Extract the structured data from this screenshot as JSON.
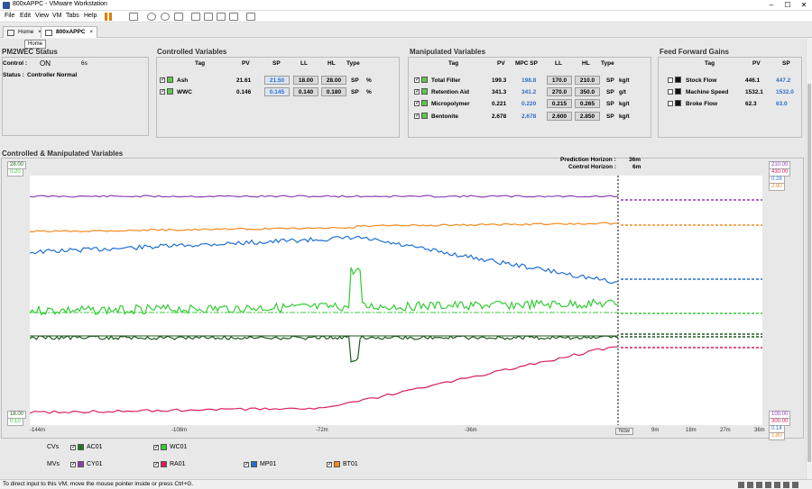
{
  "window": {
    "title": "800xAPPC - VMware Workstation"
  },
  "menu": [
    "File",
    "Edit",
    "View",
    "VM",
    "Tabs",
    "Help"
  ],
  "tabs": [
    {
      "label": "Home"
    },
    {
      "label": "800xAPPC"
    }
  ],
  "tooltip": "Home",
  "status_bar": "To direct input to this VM, move the mouse pointer inside or press Ctrl+G.",
  "pm2wec": {
    "title": "PM2WEC Status",
    "control_label": "Control :",
    "control_value": "ON",
    "control_time": "6s",
    "status_label": "Status :",
    "status_value": "Controller Normal"
  },
  "cv_panel": {
    "title": "Controlled Variables",
    "headers": [
      "Tag",
      "PV",
      "SP",
      "LL",
      "HL",
      "Type"
    ],
    "rows": [
      {
        "tag": "Ash",
        "pv": "21.61",
        "sp": "21.50",
        "ll": "18.00",
        "hl": "28.00",
        "type": "SP",
        "unit": "%"
      },
      {
        "tag": "WWC",
        "pv": "0.146",
        "sp": "0.145",
        "ll": "0.140",
        "hl": "0.180",
        "type": "SP",
        "unit": "%"
      }
    ]
  },
  "mv_panel": {
    "title": "Manipulated Variables",
    "headers": [
      "Tag",
      "PV",
      "MPC SP",
      "LL",
      "HL",
      "Type"
    ],
    "rows": [
      {
        "tag": "Total Filler",
        "pv": "199.3",
        "sp": "198.8",
        "ll": "170.0",
        "hl": "210.0",
        "type": "SP",
        "unit": "kg/t"
      },
      {
        "tag": "Retention Aid",
        "pv": "341.3",
        "sp": "341.2",
        "ll": "270.0",
        "hl": "350.0",
        "type": "SP",
        "unit": "g/t"
      },
      {
        "tag": "Micropolymer",
        "pv": "0.221",
        "sp": "0.220",
        "ll": "0.215",
        "hl": "0.265",
        "type": "SP",
        "unit": "kg/t"
      },
      {
        "tag": "Bentonite",
        "pv": "2.678",
        "sp": "2.678",
        "ll": "2.600",
        "hl": "2.850",
        "type": "SP",
        "unit": "kg/t"
      }
    ]
  },
  "ff_panel": {
    "title": "Feed Forward Gains",
    "headers": [
      "Tag",
      "PV",
      "SP"
    ],
    "rows": [
      {
        "tag": "Stock Flow",
        "pv": "446.1",
        "sp": "447.2"
      },
      {
        "tag": "Machine Speed",
        "pv": "1532.1",
        "sp": "1532.0"
      },
      {
        "tag": "Broke Flow",
        "pv": "62.3",
        "sp": "63.0"
      }
    ]
  },
  "chart_section": {
    "title": "Controlled & Manipulated Variables",
    "prediction_label": "Prediction Horizon :",
    "prediction_value": "36m",
    "control_label": "Control Horizon :",
    "control_value": "6m"
  },
  "axes": {
    "left_top": [
      "28.00",
      "0.20"
    ],
    "left_bottom": [
      "18.00",
      "0.10"
    ],
    "right_top": [
      "210.00",
      "430.00",
      "0.28",
      "2.90"
    ],
    "right_bottom": [
      "100.00",
      "300.00",
      "0.14",
      "1.80"
    ],
    "x_ticks": [
      "-144m",
      "-108m",
      "-72m",
      "-36m",
      "Now",
      "9m",
      "18m",
      "27m",
      "36m"
    ]
  },
  "legend": {
    "cv_label": "CVs",
    "mv_label": "MVs",
    "cvs": [
      {
        "name": "AC01",
        "color": "#1f7a1f"
      },
      {
        "name": "WC01",
        "color": "#33cc33"
      }
    ],
    "mvs": [
      {
        "name": "CY01",
        "color": "#8b3fb5"
      },
      {
        "name": "RA01",
        "color": "#d81b60"
      },
      {
        "name": "MP01",
        "color": "#1f6fd1"
      },
      {
        "name": "BT01",
        "color": "#f28a1e"
      }
    ]
  },
  "colors": {
    "purple": "#8b3fb5",
    "orange": "#f28a1e",
    "blue": "#1f6fd1",
    "lightgreen": "#33cc33",
    "darkgreen": "#1f5a1f",
    "pink": "#d81b60"
  }
}
